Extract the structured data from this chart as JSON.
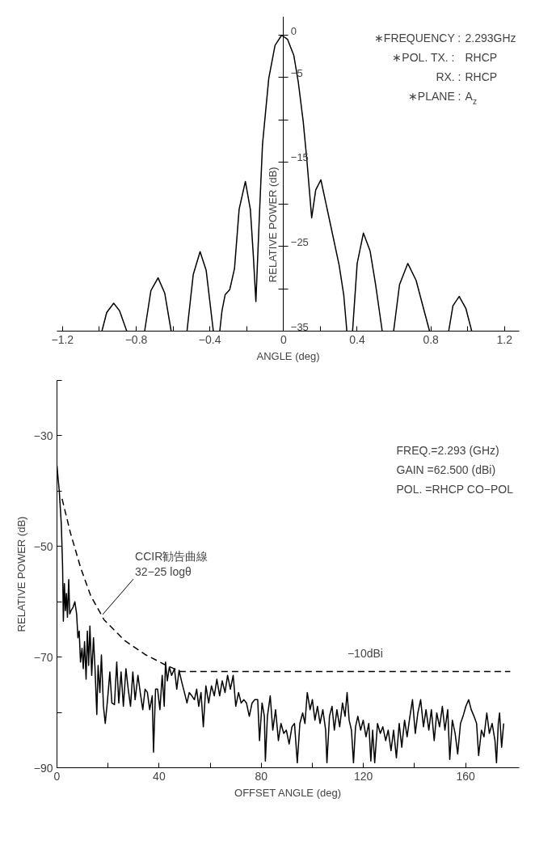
{
  "chart_data": [
    {
      "type": "line",
      "xlabel": "ANGLE (deg)",
      "ylabel": "RELATIVE POWER (dB)",
      "annotations": [
        "∗FREQUENCY : 2.293GHz",
        "∗POL.   TX. : RHCP",
        "RX. : RHCP",
        "∗PLANE : A$_{z}$"
      ],
      "xlim": [
        -1.23,
        1.28
      ],
      "ylim": [
        -35,
        2.2
      ],
      "xticks": [
        -1.2,
        {
          "value": -1.0,
          "label": null
        },
        -0.8,
        {
          "value": -0.6,
          "label": null
        },
        -0.4,
        {
          "value": -0.2,
          "label": null
        },
        0,
        {
          "value": 0.2,
          "label": null
        },
        0.4,
        {
          "value": 0.6,
          "label": null
        },
        0.8,
        {
          "value": 1.0,
          "label": null
        },
        1.2
      ],
      "yticks": [
        0,
        -5,
        {
          "value": -10,
          "label": null
        },
        -15,
        {
          "value": -20,
          "label": null
        },
        -25,
        {
          "value": -30,
          "label": null
        },
        -35
      ],
      "series": [
        {
          "color": "#000000",
          "line_style": "solid",
          "x": [
            -0.986,
            -0.96,
            -0.922,
            -0.89,
            -0.851,
            -0.82,
            -0.754,
            -0.72,
            -0.681,
            -0.645,
            -0.61,
            -0.57,
            -0.524,
            -0.49,
            -0.453,
            -0.42,
            -0.381,
            -0.36,
            -0.346,
            -0.334,
            -0.317,
            -0.292,
            -0.266,
            -0.241,
            -0.207,
            -0.18,
            -0.164,
            -0.15,
            -0.13,
            -0.114,
            -0.08,
            -0.046,
            -0.01,
            0.022,
            0.056,
            0.08,
            0.107,
            0.127,
            0.153,
            0.175,
            0.203,
            0.26,
            0.302,
            0.327,
            0.344,
            0.36,
            0.375,
            0.4,
            0.434,
            0.47,
            0.5,
            0.536,
            0.57,
            0.598,
            0.63,
            0.675,
            0.72,
            0.76,
            0.793,
            0.85,
            0.897,
            0.92,
            0.954,
            0.99,
            1.022
          ],
          "values": [
            -35,
            -32.8,
            -31.7,
            -32.6,
            -35,
            null,
            -35,
            -30.2,
            -28.7,
            -30.5,
            -35,
            null,
            -35,
            -28.3,
            -25.6,
            -27.8,
            -35,
            null,
            -35,
            -32.6,
            -30.7,
            -30.1,
            -27.6,
            -20.6,
            -17.3,
            -20.6,
            -26,
            -31.5,
            -20.9,
            -12.9,
            -5.1,
            -1.2,
            0,
            -0.5,
            -2.4,
            -5.5,
            -10.2,
            -14.8,
            -21.6,
            -18.3,
            -17.1,
            -22.9,
            -27.2,
            -30.7,
            -35,
            null,
            -35,
            -27,
            -23.4,
            -25.5,
            -29.5,
            -35,
            null,
            -35,
            -29.5,
            -27,
            -29,
            -32.3,
            -35,
            null,
            -35,
            -32,
            -30.9,
            -32.3,
            -35
          ]
        }
      ]
    },
    {
      "type": "line",
      "xlabel": "OFFSET ANGLE (deg)",
      "ylabel": "RELATIVE POWER (dB)",
      "annotations": [
        "FREQ.=2.293 (GHz)",
        "GAIN =62.500 (dBi)",
        "POL. =RHCP CO−POL",
        {
          "text": "CCIR勧告曲線\n32−25 logθ",
          "x": 17.9,
          "y": -62.3
        },
        {
          "text": "−10dBi",
          "x": 115,
          "y": -72.6
        }
      ],
      "xlim": [
        0,
        181
      ],
      "ylim": [
        -90,
        -20
      ],
      "xticks": [
        0,
        {
          "value": 20,
          "label": null
        },
        40,
        {
          "value": 60,
          "label": null
        },
        80,
        {
          "value": 100,
          "label": null
        },
        120,
        {
          "value": 140,
          "label": null
        },
        160
      ],
      "yticks": [
        {
          "value": -20,
          "label": null
        },
        -30,
        {
          "value": -40,
          "label": null
        },
        -50,
        {
          "value": -60,
          "label": null
        },
        -70,
        {
          "value": -80,
          "label": null
        },
        -90
      ],
      "series": [
        {
          "color": "#000000",
          "line_style": "solid",
          "x": [
            0,
            0.4,
            0.9,
            1.3,
            1.7,
            2.2,
            2.5,
            2.9,
            3.3,
            3.7,
            4.1,
            4.6,
            5,
            5.5,
            6.3,
            7,
            7.7,
            8.2,
            8.7,
            9.2,
            9.8,
            10.3,
            10.8,
            11.4,
            11.9,
            12.4,
            12.9,
            13.6,
            14.3,
            14.9,
            15.6,
            16.1,
            16.8,
            17.4,
            18.2,
            18.9,
            19.8,
            20.7,
            21.5,
            22.5,
            23.4,
            24.2,
            25.1,
            26,
            27,
            27.9,
            28.8,
            29.7,
            30.6,
            31.7,
            32.6,
            33.6,
            34.5,
            35.4,
            36.3,
            37.3,
            37.8,
            38.6,
            39.4,
            40.3,
            41.2,
            42,
            42.5,
            43.2,
            44,
            44.9,
            46,
            46.9,
            47.8,
            48.9,
            49.9,
            50.9,
            51.8,
            52.8,
            53.8,
            54.7,
            55.5,
            56.4,
            57.3,
            58.3,
            59.4,
            60.5,
            61.6,
            62.6,
            63.7,
            64.7,
            65.8,
            66.8,
            67.9,
            69,
            70,
            71.1,
            72.1,
            73.2,
            74.2,
            75.3,
            76.4,
            77.4,
            78.6,
            79.3,
            80.3,
            81.2,
            81.6,
            82.4,
            83.5,
            84.5,
            85.6,
            86.7,
            87.7,
            88.8,
            89.8,
            90.9,
            92,
            93,
            94.1,
            95.1,
            96.2,
            97.1,
            98,
            99.1,
            100,
            101,
            102,
            103,
            104.1,
            105.2,
            105.7,
            106.7,
            107.7,
            108.6,
            109.6,
            110.7,
            111.8,
            112.8,
            113.6,
            114.4,
            115.3,
            116.1,
            116.9,
            117.8,
            118.9,
            119.9,
            121,
            122.1,
            122.9,
            123.6,
            124.4,
            125.5,
            126.6,
            127.6,
            128.7,
            129.7,
            130.8,
            131.8,
            132.9,
            134,
            135,
            136.1,
            137.1,
            138.2,
            139.2,
            140.3,
            141.3,
            142.4,
            143.5,
            144.5,
            145.6,
            146.6,
            147.7,
            148.7,
            149.8,
            150.9,
            151.9,
            153,
            153.8,
            154.8,
            155.9,
            156.9,
            158,
            159,
            160.1,
            161.2,
            162.2,
            163.3,
            164.3,
            165.1,
            166.2,
            167.2,
            168.3,
            169.3,
            170.4,
            171.5,
            172.1,
            172.8,
            173.3,
            174.1,
            174.9
          ],
          "values": [
            -35.4,
            -37.5,
            -40,
            -43,
            -46,
            -53.6,
            -63.5,
            -56.7,
            -61.6,
            -58.5,
            -62.8,
            -56,
            -62.2,
            -61.6,
            -61,
            -60,
            -62.2,
            -66.5,
            -65.3,
            -70.9,
            -68.4,
            -72.1,
            -67.2,
            -74,
            -65.3,
            -71.5,
            -64.4,
            -73.3,
            -66.5,
            -72.1,
            -80.4,
            -71.5,
            -76.4,
            -69.6,
            -78.9,
            -82,
            -77.7,
            -72.7,
            -78.3,
            -78.6,
            -70.9,
            -78.3,
            -72.7,
            -78.9,
            -72.1,
            -75.8,
            -78.9,
            -72.7,
            -77.7,
            -73.3,
            -76.4,
            -79.5,
            -75.8,
            -76.4,
            -79.5,
            -77,
            -87.2,
            -75.8,
            -75.8,
            -79.5,
            -73.3,
            -78.9,
            -70.9,
            -74.3,
            -71.8,
            -73.3,
            -72.1,
            -75.8,
            -72.4,
            -74.6,
            -76.4,
            -78.3,
            -76.4,
            -77,
            -77.7,
            -75.8,
            -78.9,
            -76.4,
            -82.6,
            -75.2,
            -78.3,
            -75.2,
            -77,
            -74,
            -77,
            -74.3,
            -76.4,
            -73.3,
            -75.8,
            -73.3,
            -78.9,
            -76.4,
            -78.3,
            -77.7,
            -78.3,
            -80.7,
            -78.3,
            -77.7,
            -77.7,
            -85.1,
            -78.3,
            -80.7,
            -88.8,
            -80.7,
            -77,
            -83.2,
            -79.5,
            -85.1,
            -82,
            -83.8,
            -83.2,
            -85.7,
            -82.6,
            -82,
            -89.1,
            -82,
            -80.1,
            -82,
            -76.4,
            -79.5,
            -77.7,
            -81.4,
            -78.9,
            -82,
            -79.5,
            -83.2,
            -89.1,
            -80.7,
            -78.9,
            -83.2,
            -79.5,
            -82.6,
            -78.3,
            -80.7,
            -76.4,
            -81.4,
            -83.2,
            -89.1,
            -82.6,
            -80.7,
            -83.2,
            -81.4,
            -84.4,
            -82,
            -88.8,
            -83.2,
            -89.1,
            -82,
            -83.8,
            -82.6,
            -85.1,
            -83.2,
            -86.9,
            -83.2,
            -88.2,
            -82,
            -86.3,
            -81.4,
            -84.4,
            -80.7,
            -77.7,
            -83.8,
            -80.1,
            -77.7,
            -82.6,
            -79.5,
            -83.2,
            -79.5,
            -85.1,
            -80.1,
            -82.6,
            -78.9,
            -83.2,
            -79.5,
            -88.5,
            -81.4,
            -83.8,
            -87.5,
            -82,
            -80.7,
            -78.9,
            -77.7,
            -79.5,
            -80.7,
            -82,
            -87.8,
            -83.2,
            -84.4,
            -80.1,
            -83.8,
            -82,
            -85.1,
            -89.1,
            -82,
            -80.1,
            -86.3,
            -82
          ]
        },
        {
          "color": "#000000",
          "line_style": "dashed",
          "x": [
            2,
            5.3,
            9.3,
            13.2,
            18.5,
            26.5,
            34.4,
            42.4,
            48.3,
            177.5
          ],
          "values": [
            -41.4,
            -47.6,
            -53.9,
            -58.9,
            -63.3,
            -67,
            -69.5,
            -71.4,
            -72.6,
            -72.6
          ]
        }
      ]
    }
  ]
}
